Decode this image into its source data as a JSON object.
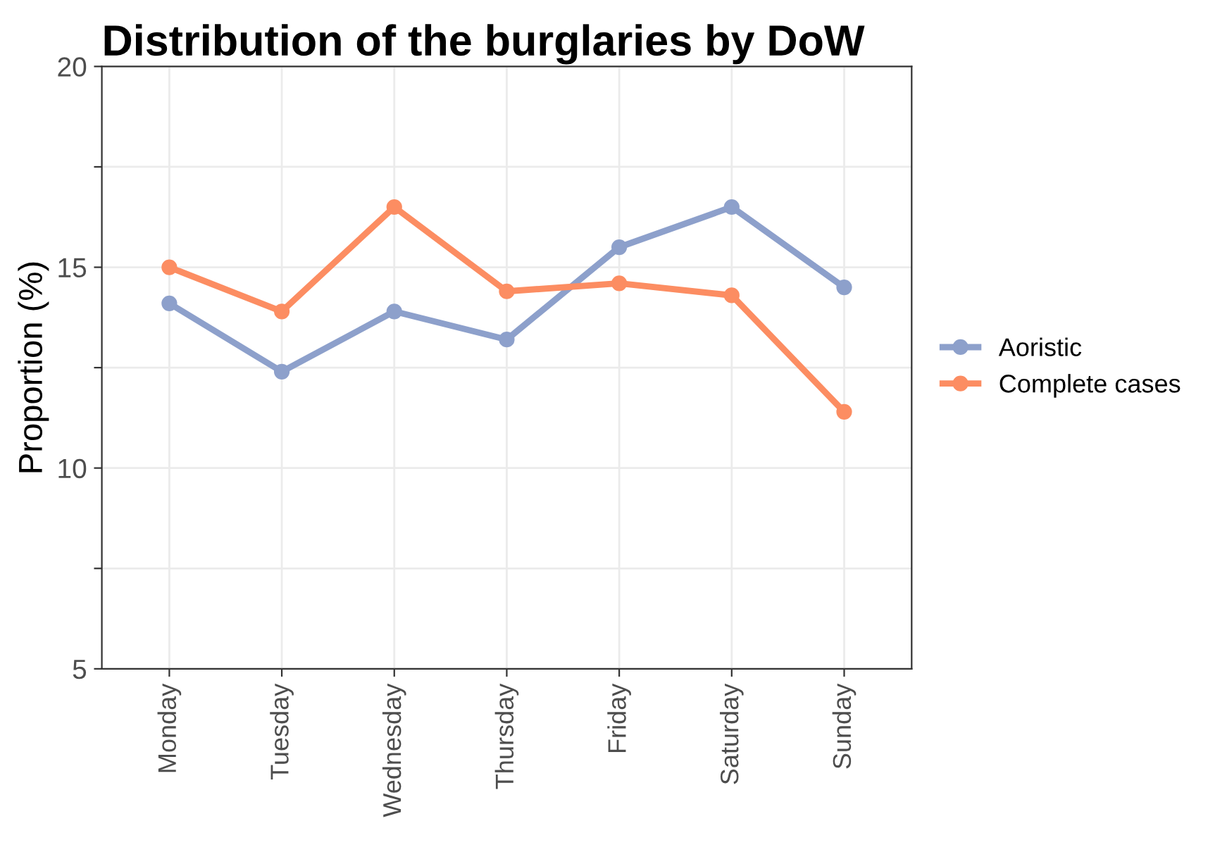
{
  "chart_data": {
    "type": "line",
    "title": "Distribution of the burglaries by DoW",
    "ylabel": "Proportion (%)",
    "categories": [
      "Monday",
      "Tuesday",
      "Wednesday",
      "Thursday",
      "Friday",
      "Saturday",
      "Sunday"
    ],
    "series": [
      {
        "name": "Aoristic",
        "color": "#8da0cb",
        "values": [
          14.1,
          12.4,
          13.9,
          13.2,
          15.5,
          16.5,
          14.5
        ]
      },
      {
        "name": "Complete cases",
        "color": "#fc8d62",
        "values": [
          15.0,
          13.9,
          16.5,
          14.4,
          14.6,
          14.3,
          11.4
        ]
      }
    ],
    "ylim": [
      5,
      20
    ],
    "yticks": [
      5,
      {
        "value": 7.5,
        "label": null
      },
      10,
      {
        "value": 12.5,
        "label": null
      },
      15,
      {
        "value": 17.5,
        "label": null
      },
      20
    ],
    "grid": true,
    "legend": "right",
    "marker": "circle",
    "line_style": "solid"
  }
}
